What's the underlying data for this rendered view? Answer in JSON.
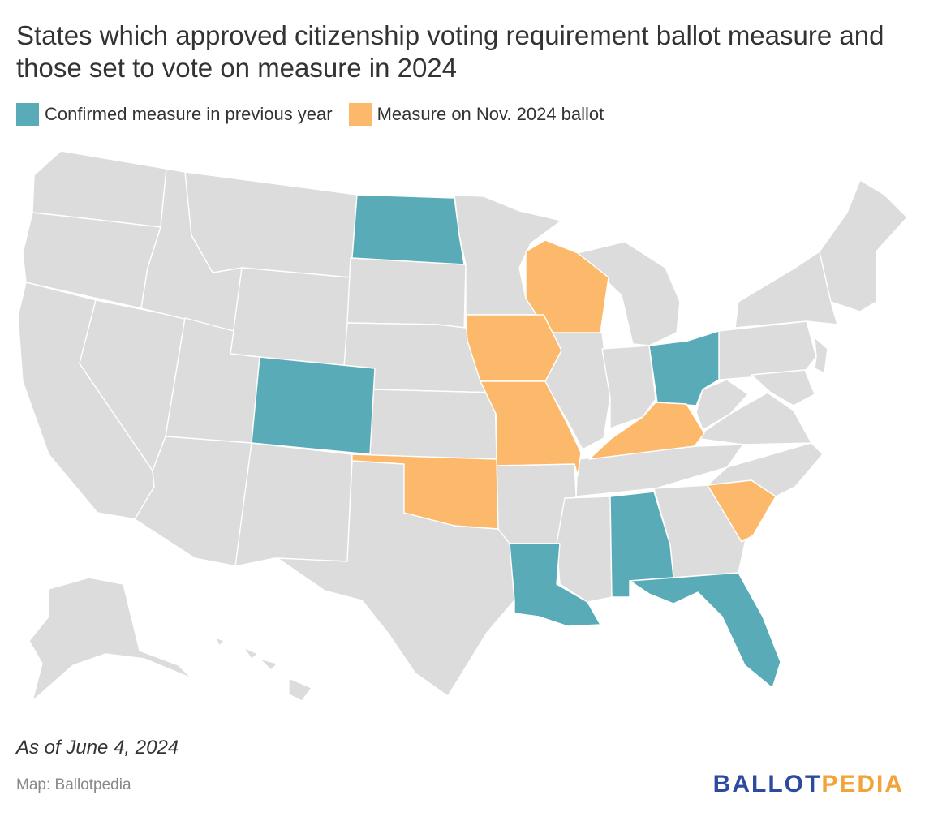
{
  "title": "States which approved citizenship voting requirement ballot measure and those set to vote on measure in 2024",
  "legend": [
    {
      "label": "Confirmed measure in previous year",
      "color": "#5aabb8"
    },
    {
      "label": "Measure on Nov. 2024 ballot",
      "color": "#fdb96b"
    }
  ],
  "base_color": "#dcdcdc",
  "states_confirmed": [
    "North Dakota",
    "Colorado",
    "Ohio",
    "Alabama",
    "Louisiana",
    "Florida"
  ],
  "states_on_ballot": [
    "Wisconsin",
    "Iowa",
    "Missouri",
    "Kentucky",
    "Oklahoma",
    "South Carolina"
  ],
  "note": "As of June 4, 2024",
  "source": "Map: Ballotpedia",
  "logo": {
    "part1": "BALLOT",
    "part2": "PEDIA"
  }
}
